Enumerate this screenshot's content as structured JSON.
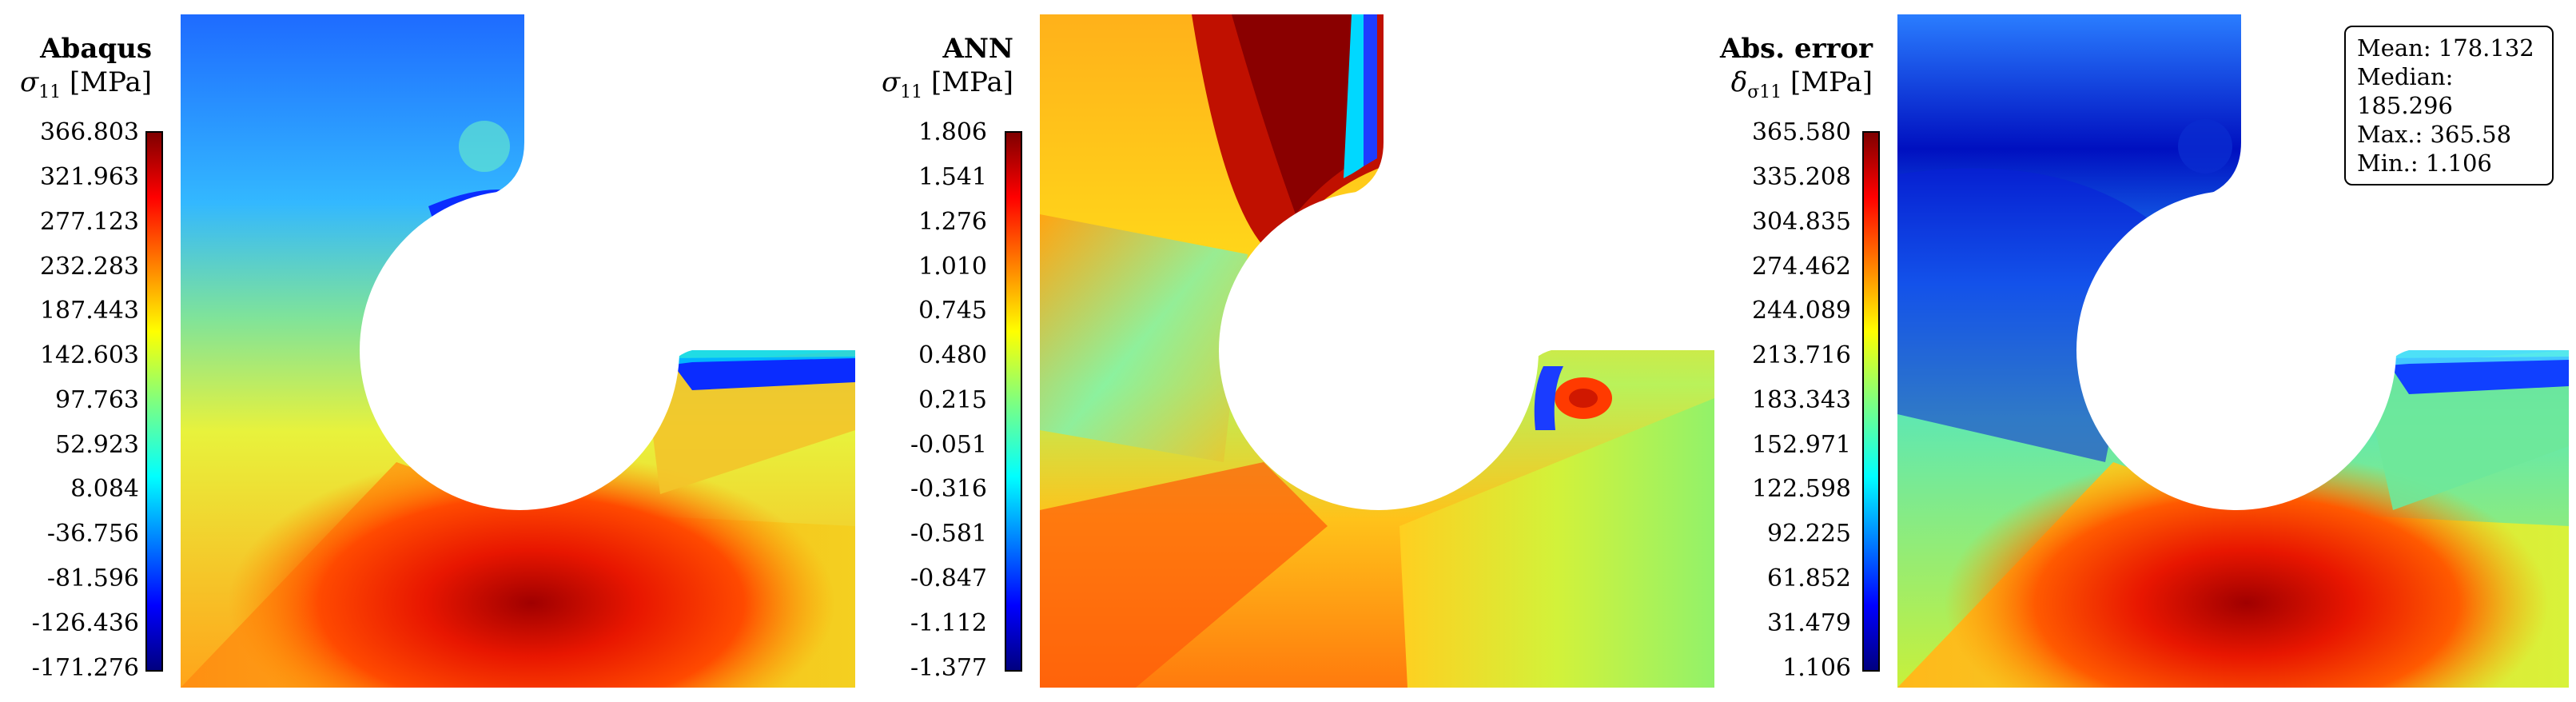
{
  "panels": [
    {
      "title": "Abaqus",
      "symbol_main": "σ",
      "symbol_sub": "11",
      "unit": "[MPa]",
      "ticks": [
        "366.803",
        "321.963",
        "277.123",
        "232.283",
        "187.443",
        "142.603",
        "97.763",
        "52.923",
        "8.084",
        "-36.756",
        "-81.596",
        "-126.436",
        "-171.276"
      ]
    },
    {
      "title": "ANN",
      "symbol_main": "σ",
      "symbol_sub": "11",
      "unit": "[MPa]",
      "ticks": [
        "1.806",
        "1.541",
        "1.276",
        "1.010",
        "0.745",
        "0.480",
        "0.215",
        "-0.051",
        "-0.316",
        "-0.581",
        "-0.847",
        "-1.112",
        "-1.377"
      ]
    },
    {
      "title": "Abs. error",
      "symbol_main": "δ",
      "symbol_sub": "σ11",
      "unit": "[MPa]",
      "ticks": [
        "365.580",
        "335.208",
        "304.835",
        "274.462",
        "244.089",
        "213.716",
        "183.343",
        "152.971",
        "122.598",
        "92.225",
        "61.852",
        "31.479",
        "1.106"
      ]
    }
  ],
  "stats": {
    "mean": "Mean: 178.132",
    "median": "Median: 185.296",
    "max": "Max.: 365.58",
    "min": "Min.: 1.106"
  },
  "colormap": [
    "#00007f",
    "#0000ff",
    "#00ffff",
    "#7fff7f",
    "#ffff00",
    "#ff0000",
    "#7f0000"
  ]
}
